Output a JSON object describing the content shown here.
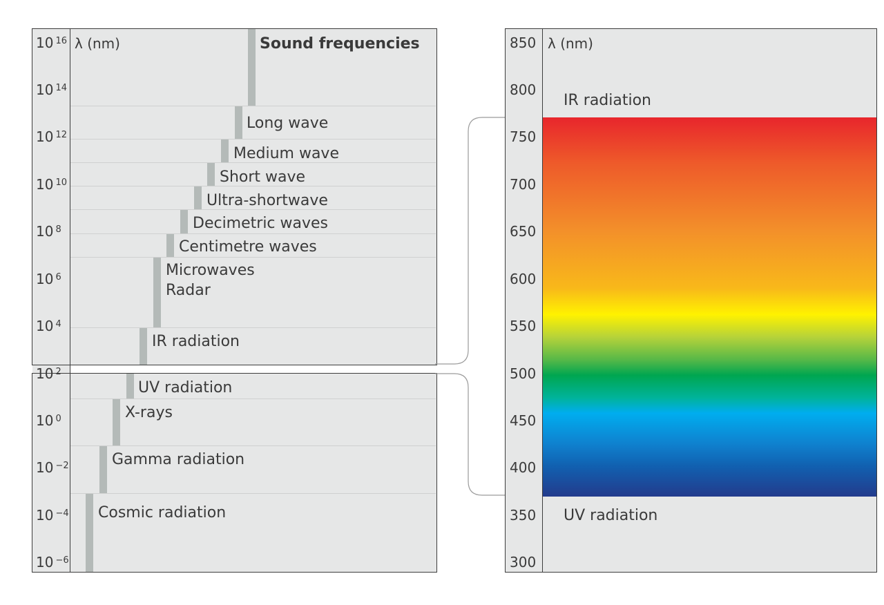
{
  "left_panel": {
    "axis_label": "λ (nm)",
    "title": "Sound frequencies",
    "ticks": [
      {
        "base": "10",
        "exp": "16"
      },
      {
        "base": "10",
        "exp": "14"
      },
      {
        "base": "10",
        "exp": "12"
      },
      {
        "base": "10",
        "exp": "10"
      },
      {
        "base": "10",
        "exp": "8"
      },
      {
        "base": "10",
        "exp": "6"
      },
      {
        "base": "10",
        "exp": "4"
      },
      {
        "base": "10",
        "exp": "2"
      },
      {
        "base": "10",
        "exp": "0"
      },
      {
        "base": "10",
        "exp": "−2"
      },
      {
        "base": "10",
        "exp": "−4"
      },
      {
        "base": "10",
        "exp": "−6"
      }
    ],
    "bands": [
      "Long wave",
      "Medium wave",
      "Short wave",
      "Ultra-shortwave",
      "Decimetric waves",
      "Centimetre waves",
      "Microwaves",
      "Radar",
      "IR radiation",
      "UV radiation",
      "X-rays",
      "Gamma radiation",
      "Cosmic radiation"
    ]
  },
  "right_panel": {
    "axis_label": "λ (nm)",
    "ticks": [
      "850",
      "800",
      "750",
      "700",
      "650",
      "600",
      "550",
      "500",
      "450",
      "400",
      "350",
      "300"
    ],
    "ir_label": "IR radiation",
    "uv_label": "UV radiation"
  },
  "colors": {
    "panel": "#e6e7e7",
    "bar": "#b4bab8",
    "border": "#3c3c3c",
    "spectrum_top": "#e8262c",
    "spectrum_bottom": "#233b8c"
  }
}
